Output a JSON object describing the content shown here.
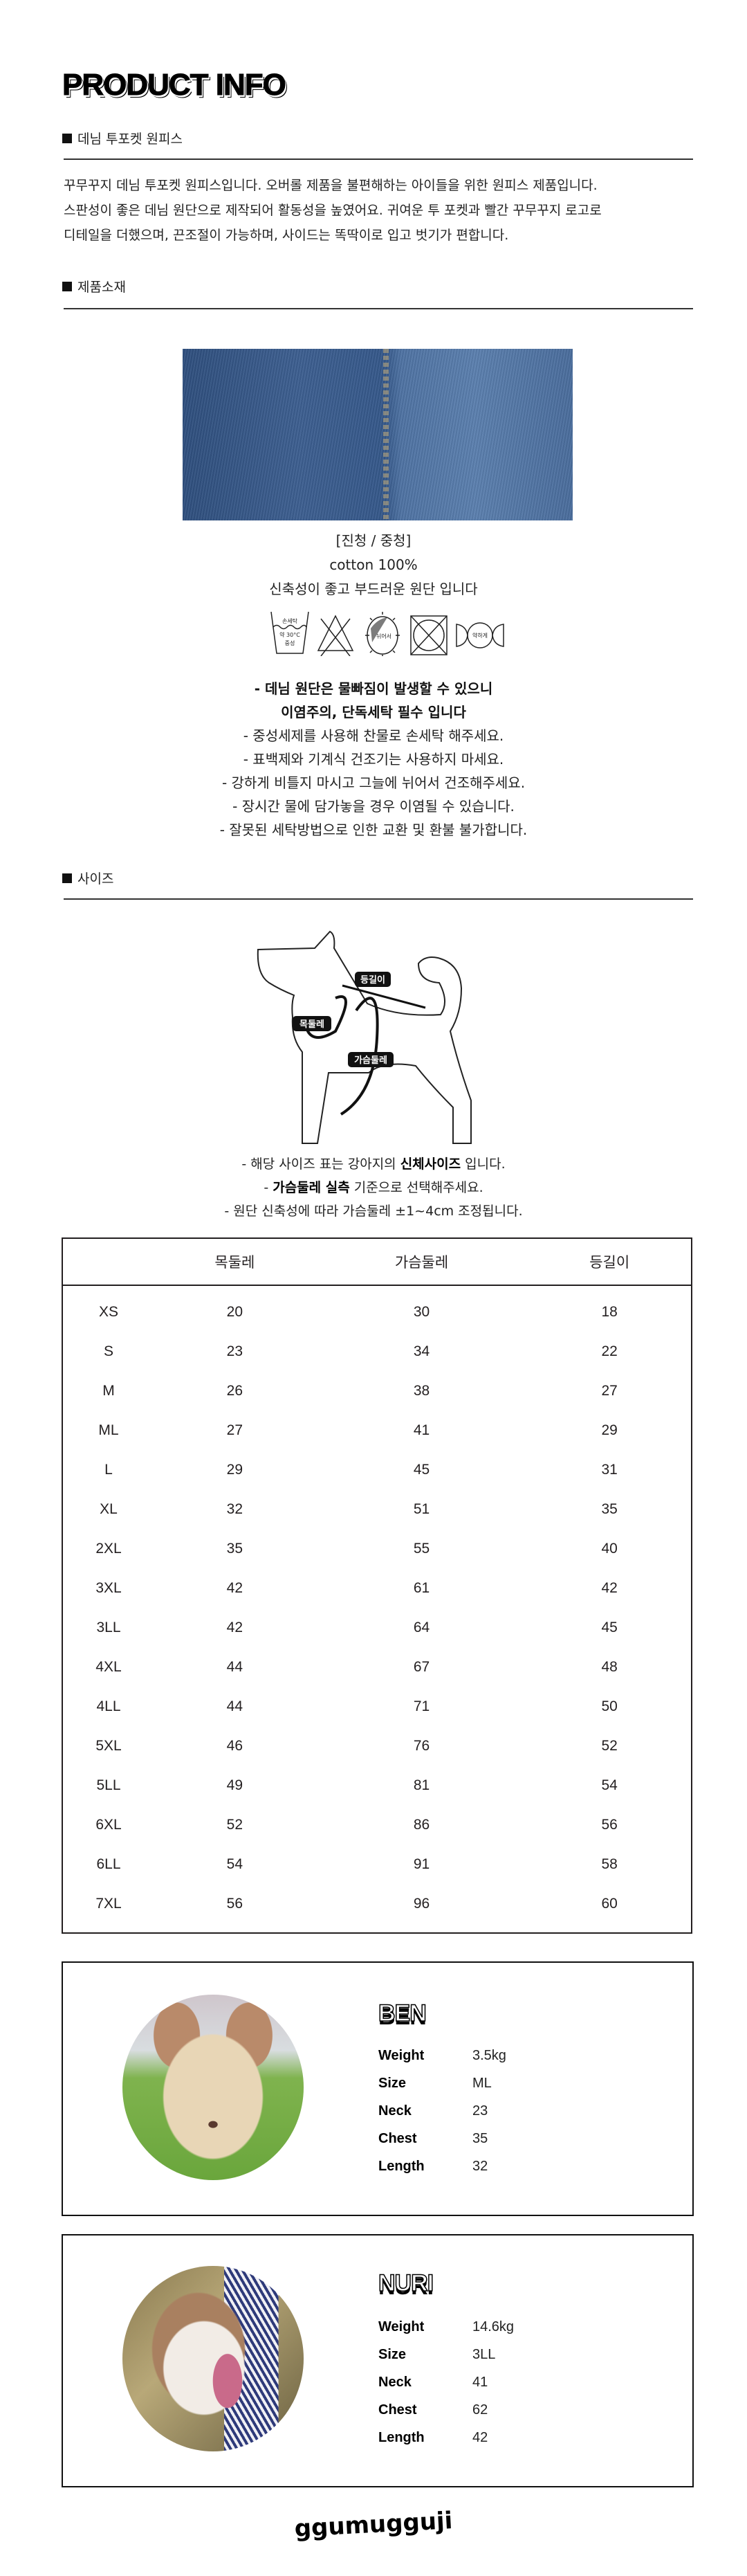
{
  "title": "PRODUCT INFO",
  "product": {
    "heading": "데님 투포켓 원피스",
    "description": [
      "꾸무꾸지 데님 투포켓 원피스입니다. 오버롤 제품을 불편해하는 아이들을 위한 원피스 제품입니다.",
      "스판성이 좋은 데님 원단으로 제작되어 활동성을 높였어요. 귀여운 투 포켓과 빨간 꾸무꾸지 로고로",
      "디테일을 더했으며, 끈조절이 가능하며, 사이드는 똑딱이로 입고 벗기가 편합니다."
    ]
  },
  "material": {
    "heading": "제품소재",
    "colors": "[진청 / 중청]",
    "composition": "cotton 100%",
    "feel": "신축성이 좋고 부드러운 원단 입니다",
    "care_icons": [
      {
        "icon": "hand-wash-icon",
        "lines": [
          "손세탁",
          "약 30°C",
          "중성"
        ]
      },
      {
        "icon": "no-bleach-icon"
      },
      {
        "icon": "flat-dry-icon",
        "label": "뉘어서"
      },
      {
        "icon": "no-tumble-dry-icon"
      },
      {
        "icon": "gentle-wring-icon",
        "label": "약하게"
      }
    ],
    "warning": [
      "- 데님 원단은 물빠짐이 발생할 수 있으니",
      "이염주의, 단독세탁 필수 입니다"
    ],
    "care_notes": [
      "- 중성세제를 사용해 찬물로 손세탁 해주세요.",
      "- 표백제와 기계식 건조기는 사용하지 마세요.",
      "- 강하게 비틀지 마시고 그늘에 뉘어서 건조해주세요.",
      "- 장시간 물에 담가놓을 경우 이염될 수 있습니다.",
      "- 잘못된 세탁방법으로 인한 교환 및 환불 불가합니다."
    ]
  },
  "size": {
    "heading": "사이즈",
    "diagram_labels": {
      "neck": "목둘레",
      "back": "등길이",
      "chest": "가슴둘레"
    },
    "notes": {
      "n1_pre": "- 해당 사이즈 표는 강아지의 ",
      "n1_bold": "신체사이즈",
      "n1_post": " 입니다.",
      "n2_pre": "- ",
      "n2_bold": "가슴둘레 실측",
      "n2_post": " 기준으로 선택해주세요.",
      "n3": "- 원단 신축성에 따라 가슴둘레 ±1~4cm 조정됩니다."
    },
    "table": {
      "columns": [
        "",
        "목둘레",
        "가슴둘레",
        "등길이"
      ],
      "rows": [
        [
          "XS",
          "20",
          "30",
          "18"
        ],
        [
          "S",
          "23",
          "34",
          "22"
        ],
        [
          "M",
          "26",
          "38",
          "27"
        ],
        [
          "ML",
          "27",
          "41",
          "29"
        ],
        [
          "L",
          "29",
          "45",
          "31"
        ],
        [
          "XL",
          "32",
          "51",
          "35"
        ],
        [
          "2XL",
          "35",
          "55",
          "40"
        ],
        [
          "3XL",
          "42",
          "61",
          "42"
        ],
        [
          "3LL",
          "42",
          "64",
          "45"
        ],
        [
          "4XL",
          "44",
          "67",
          "48"
        ],
        [
          "4LL",
          "44",
          "71",
          "50"
        ],
        [
          "5XL",
          "46",
          "76",
          "52"
        ],
        [
          "5LL",
          "49",
          "81",
          "54"
        ],
        [
          "6XL",
          "52",
          "86",
          "56"
        ],
        [
          "6LL",
          "54",
          "91",
          "58"
        ],
        [
          "7XL",
          "56",
          "96",
          "60"
        ]
      ]
    }
  },
  "models": [
    {
      "name": "BEN",
      "stats": [
        [
          "Weight",
          "3.5kg"
        ],
        [
          "Size",
          "ML"
        ],
        [
          "Neck",
          "23"
        ],
        [
          "Chest",
          "35"
        ],
        [
          "Length",
          "32"
        ]
      ]
    },
    {
      "name": "NURI",
      "stats": [
        [
          "Weight",
          "14.6kg"
        ],
        [
          "Size",
          "3LL"
        ],
        [
          "Neck",
          "41"
        ],
        [
          "Chest",
          "62"
        ],
        [
          "Length",
          "42"
        ]
      ]
    }
  ],
  "brand": "ggumugguji"
}
